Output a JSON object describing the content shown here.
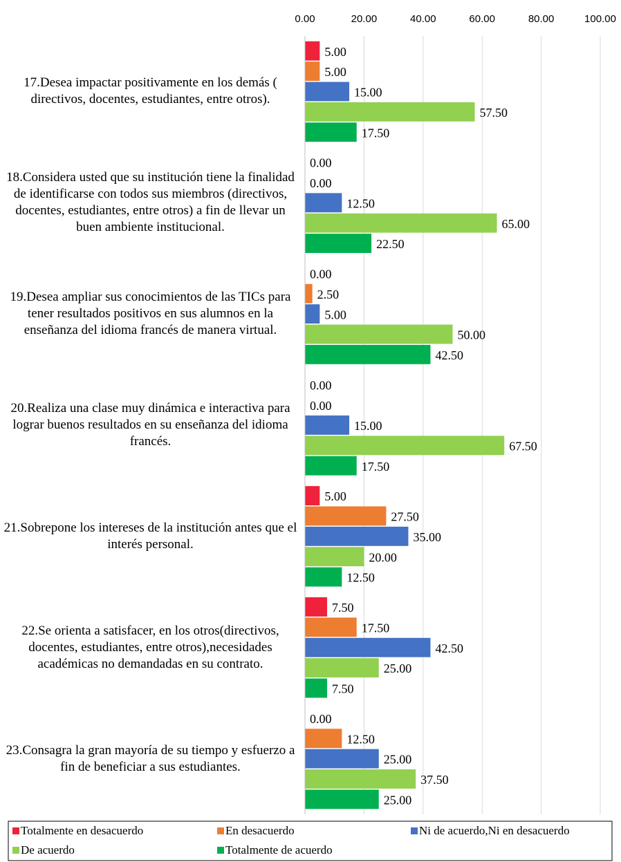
{
  "chart_data": {
    "type": "hbar",
    "categories": [
      "17.Desea impactar positivamente en los demás ( directivos, docentes, estudiantes, entre otros).",
      "18.Considera usted que su institución tiene la finalidad de identificarse con todos sus miembros (directivos, docentes, estudiantes, entre otros) a fin de llevar un buen ambiente institucional.",
      "19.Desea ampliar sus conocimientos de las TICs para tener resultados positivos en sus alumnos en la enseñanza del idioma francés de manera virtual.",
      "20.Realiza una clase muy dinámica e interactiva para lograr buenos resultados en su enseñanza del idioma francés.",
      "21.Sobrepone los intereses de la institución antes que el interés personal.",
      "22.Se orienta a satisfacer, en los otros(directivos, docentes, estudiantes, entre otros),necesidades académicas no demandadas en su contrato.",
      "23.Consagra la gran mayoría de su tiempo y esfuerzo a fin de beneficiar a sus estudiantes."
    ],
    "series": [
      {
        "name": "Totalmente en desacuerdo",
        "color": "#f0213a",
        "values": [
          5,
          0,
          0,
          0,
          5,
          7.5,
          0
        ],
        "value_labels": [
          "5.00",
          "0.00",
          "0.00",
          "0.00",
          "5.00",
          "7.50",
          "0.00"
        ]
      },
      {
        "name": "En desacuerdo",
        "color": "#ed7d31",
        "values": [
          5,
          0,
          2.5,
          0,
          27.5,
          17.5,
          12.5
        ],
        "value_labels": [
          "5.00",
          "0.00",
          "2.50",
          "0.00",
          "27.50",
          "17.50",
          "12.50"
        ]
      },
      {
        "name": "Ni de acuerdo,Ni en desacuerdo",
        "color": "#4472c4",
        "values": [
          15,
          12.5,
          5,
          15,
          35,
          42.5,
          25
        ],
        "value_labels": [
          "15.00",
          "12.50",
          "5.00",
          "15.00",
          "35.00",
          "42.50",
          "25.00"
        ]
      },
      {
        "name": "De acuerdo",
        "color": "#92d050",
        "values": [
          57.5,
          65,
          50,
          67.5,
          20,
          25,
          37.5
        ],
        "value_labels": [
          "57.50",
          "65.00",
          "50.00",
          "67.50",
          "20.00",
          "25.00",
          "37.50"
        ]
      },
      {
        "name": "Totalmente de acuerdo",
        "color": "#00b050",
        "values": [
          17.5,
          22.5,
          42.5,
          17.5,
          12.5,
          7.5,
          25
        ],
        "value_labels": [
          "17.50",
          "22.50",
          "42.50",
          "17.50",
          "12.50",
          "7.50",
          "25.00"
        ]
      }
    ],
    "xlim": [
      0,
      100
    ],
    "xticks": [
      {
        "value": 0,
        "label": "0.00"
      },
      {
        "value": 20,
        "label": "20.00"
      },
      {
        "value": 40,
        "label": "40.00"
      },
      {
        "value": 60,
        "label": "60.00"
      },
      {
        "value": 80,
        "label": "80.00"
      },
      {
        "value": 100,
        "label": "100.00"
      }
    ],
    "grid": true,
    "legend": "bottom"
  }
}
